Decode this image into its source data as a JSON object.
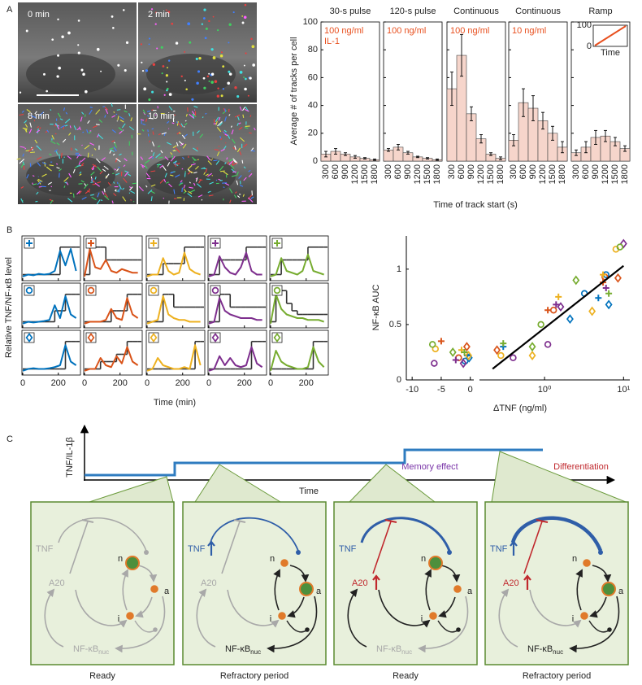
{
  "panel_labels": [
    "A",
    "B",
    "C"
  ],
  "microscopy": {
    "frames": [
      "0 min",
      "2 min",
      "8 min",
      "10 min"
    ]
  },
  "chart_data": [
    {
      "type": "bar",
      "ylabel": "Average # of tracks per cell",
      "xlabel": "Time of track start (s)",
      "ylim": [
        0,
        100
      ],
      "yticks": [
        0,
        20,
        40,
        60,
        80,
        100
      ],
      "xlim": [
        150,
        1950
      ],
      "xticks": [
        300,
        600,
        900,
        1200,
        1500,
        1800
      ],
      "x": [
        300,
        600,
        900,
        1200,
        1500,
        1800
      ],
      "color": "#f6d5cb",
      "annotation_color": "#e8501f",
      "panels": [
        {
          "title": "30-s pulse",
          "annotation": [
            "100 ng/ml",
            "IL-1"
          ],
          "values": [
            5,
            7,
            5,
            3,
            2,
            1
          ],
          "errors": [
            2,
            2,
            1,
            1,
            0.5,
            0.5
          ]
        },
        {
          "title": "120-s pulse",
          "annotation": [
            "100 ng/ml"
          ],
          "values": [
            8,
            10,
            6,
            3,
            2,
            1
          ],
          "errors": [
            1,
            2,
            1,
            0.5,
            0.5,
            0.5
          ]
        },
        {
          "title": "Continuous",
          "annotation": [
            "100 ng/ml"
          ],
          "values": [
            52,
            76,
            34,
            16,
            5,
            2
          ],
          "errors": [
            12,
            15,
            5,
            3,
            1,
            1
          ]
        },
        {
          "title": "Continuous",
          "annotation": [
            "10 ng/ml"
          ],
          "values": [
            15,
            42,
            38,
            29,
            20,
            10
          ],
          "errors": [
            4,
            10,
            9,
            6,
            5,
            4
          ]
        },
        {
          "title": "Ramp",
          "values": [
            6,
            10,
            17,
            18,
            14,
            9
          ],
          "errors": [
            2,
            4,
            5,
            4,
            3,
            2
          ],
          "inset": {
            "ylim": [
              0,
              100
            ],
            "yticks": [
              0,
              100
            ],
            "xlabel": "Time",
            "values": [
              0,
              100
            ],
            "color": "#e8501f"
          }
        }
      ]
    },
    {
      "type": "line",
      "ylabel": "Relative TNF/NF-κB level",
      "xlabel": "Time (min)",
      "xlim": [
        0,
        320
      ],
      "xticks": [
        0,
        200
      ],
      "ylim": [
        0,
        1
      ],
      "x": [
        0,
        30,
        60,
        90,
        120,
        150,
        180,
        210,
        240,
        270,
        300
      ],
      "colors": [
        "#0072bd",
        "#d95319",
        "#edb120",
        "#7e2f8e",
        "#77ac30"
      ],
      "markers": [
        "plus",
        "circle",
        "diamond"
      ],
      "panels": [
        [
          {
            "values": [
              0.05,
              0.1,
              0.08,
              0.12,
              0.1,
              0.12,
              0.2,
              0.75,
              0.35,
              0.8,
              0.2
            ],
            "input": [
              0.1,
              0.1,
              0.1,
              0.1,
              0.1,
              0.1,
              0.1,
              0.85,
              0.85,
              0.85,
              0.85
            ]
          },
          {
            "values": [
              0.05,
              0.8,
              0.3,
              0.25,
              0.5,
              0.2,
              0.15,
              0.25,
              0.2,
              0.15,
              0.15
            ],
            "input": [
              0.1,
              0.85,
              0.85,
              0.85,
              0.5,
              0.5,
              0.5,
              0.5,
              0.5,
              0.5,
              0.5
            ]
          },
          {
            "values": [
              0.05,
              0.1,
              0.1,
              0.55,
              0.2,
              0.1,
              0.15,
              0.7,
              0.25,
              0.15,
              0.1
            ],
            "input": [
              0.1,
              0.1,
              0.1,
              0.4,
              0.4,
              0.4,
              0.4,
              0.85,
              0.85,
              0.85,
              0.85
            ]
          },
          {
            "values": [
              0.05,
              0.1,
              0.6,
              0.3,
              0.15,
              0.1,
              0.3,
              0.7,
              0.2,
              0.1,
              0.1
            ],
            "input": [
              0.1,
              0.1,
              0.5,
              0.5,
              0.5,
              0.5,
              0.5,
              0.85,
              0.85,
              0.85,
              0.85
            ]
          },
          {
            "values": [
              0.05,
              0.1,
              0.55,
              0.2,
              0.15,
              0.1,
              0.2,
              0.65,
              0.2,
              0.15,
              0.1
            ],
            "input": [
              0.1,
              0.1,
              0.5,
              0.5,
              0.5,
              0.5,
              0.5,
              0.85,
              0.85,
              0.85,
              0.85
            ]
          }
        ],
        [
          {
            "values": [
              0.05,
              0.1,
              0.08,
              0.1,
              0.12,
              0.15,
              0.55,
              0.2,
              0.8,
              0.3,
              0.2
            ],
            "input": [
              0.1,
              0.1,
              0.1,
              0.1,
              0.1,
              0.1,
              0.4,
              0.4,
              0.85,
              0.85,
              0.85
            ]
          },
          {
            "values": [
              0.05,
              0.1,
              0.1,
              0.1,
              0.15,
              0.45,
              0.2,
              0.15,
              0.75,
              0.3,
              0.2
            ],
            "input": [
              0.1,
              0.1,
              0.1,
              0.1,
              0.1,
              0.4,
              0.4,
              0.4,
              0.85,
              0.85,
              0.85
            ]
          },
          {
            "values": [
              0.05,
              0.1,
              0.15,
              0.8,
              0.3,
              0.2,
              0.15,
              0.15,
              0.1,
              0.1,
              0.1
            ],
            "input": [
              0.1,
              0.1,
              0.1,
              0.85,
              0.85,
              0.5,
              0.5,
              0.5,
              0.5,
              0.5,
              0.5
            ]
          },
          {
            "values": [
              0.05,
              0.1,
              0.75,
              0.4,
              0.3,
              0.25,
              0.2,
              0.2,
              0.2,
              0.15,
              0.15
            ],
            "input": [
              0.1,
              0.1,
              0.85,
              0.85,
              0.5,
              0.5,
              0.5,
              0.5,
              0.5,
              0.5,
              0.5
            ]
          },
          {
            "values": [
              0.05,
              0.85,
              0.45,
              0.3,
              0.25,
              0.2,
              0.2,
              0.15,
              0.15,
              0.15,
              0.1
            ],
            "input": [
              0.1,
              0.95,
              0.95,
              0.6,
              0.4,
              0.3,
              0.3,
              0.3,
              0.3,
              0.3,
              0.3
            ]
          }
        ],
        [
          {
            "values": [
              0.05,
              0.1,
              0.12,
              0.1,
              0.1,
              0.12,
              0.15,
              0.2,
              0.75,
              0.3,
              0.2
            ],
            "input": [
              0.1,
              0.1,
              0.1,
              0.1,
              0.1,
              0.1,
              0.1,
              0.1,
              0.85,
              0.85,
              0.85
            ]
          },
          {
            "values": [
              0.05,
              0.1,
              0.1,
              0.4,
              0.2,
              0.15,
              0.45,
              0.25,
              0.7,
              0.3,
              0.2
            ],
            "input": [
              0.1,
              0.1,
              0.1,
              0.3,
              0.3,
              0.3,
              0.5,
              0.5,
              0.85,
              0.85,
              0.85
            ]
          },
          {
            "values": [
              0.05,
              0.1,
              0.4,
              0.2,
              0.15,
              0.1,
              0.1,
              0.15,
              0.1,
              0.75,
              0.2
            ],
            "input": [
              0.1,
              0.1,
              0.1,
              0.1,
              0.1,
              0.1,
              0.1,
              0.1,
              0.1,
              0.85,
              0.85
            ]
          },
          {
            "values": [
              0.05,
              0.1,
              0.45,
              0.2,
              0.4,
              0.2,
              0.15,
              0.2,
              0.7,
              0.25,
              0.15
            ],
            "input": [
              0.1,
              0.1,
              0.1,
              0.1,
              0.1,
              0.1,
              0.1,
              0.1,
              0.85,
              0.85,
              0.85
            ]
          },
          {
            "values": [
              0.05,
              0.6,
              0.3,
              0.2,
              0.15,
              0.1,
              0.1,
              0.15,
              0.7,
              0.3,
              0.15
            ],
            "input": [
              0.1,
              0.1,
              0.1,
              0.1,
              0.1,
              0.1,
              0.1,
              0.1,
              0.85,
              0.85,
              0.85
            ]
          }
        ]
      ]
    },
    {
      "type": "scatter",
      "ylabel": "NF-κB AUC",
      "xlabel": "ΔTNF (ng/ml)",
      "ylim": [
        0,
        1.3
      ],
      "yticks": [
        0,
        0.5,
        1
      ],
      "panels": [
        {
          "xlim": [
            -11,
            0.6
          ],
          "xticks": [
            -10,
            -5,
            0
          ]
        },
        {
          "xlim": [
            0.15,
            12
          ],
          "log": true,
          "xticks": [
            {
              "value": 1,
              "label": "10⁰"
            },
            {
              "value": 10,
              "label": "10¹"
            }
          ]
        }
      ],
      "series": [
        {
          "color": "#0072bd",
          "marker": "plus",
          "x": [
            -0.5,
            0.3,
            4.8
          ],
          "values": [
            0.22,
            0.3,
            0.74
          ]
        },
        {
          "color": "#0072bd",
          "marker": "circle",
          "x": [
            -0.9,
            3.2,
            6
          ],
          "values": [
            0.17,
            0.78,
            0.95
          ]
        },
        {
          "color": "#0072bd",
          "marker": "diamond",
          "x": [
            -0.2,
            2.1,
            6.5
          ],
          "values": [
            0.2,
            0.55,
            0.68
          ]
        },
        {
          "color": "#d95319",
          "marker": "plus",
          "x": [
            -5,
            1.1,
            5.5
          ],
          "values": [
            0.35,
            0.63,
            0.88
          ]
        },
        {
          "color": "#d95319",
          "marker": "circle",
          "x": [
            -2,
            1.3,
            5.8
          ],
          "values": [
            0.2,
            0.63,
            0.93
          ]
        },
        {
          "color": "#d95319",
          "marker": "diamond",
          "x": [
            -0.6,
            0.25,
            8.5
          ],
          "values": [
            0.3,
            0.27,
            0.92
          ]
        },
        {
          "color": "#edb120",
          "marker": "plus",
          "x": [
            -1.5,
            1.5,
            5.5
          ],
          "values": [
            0.27,
            0.75,
            0.95
          ]
        },
        {
          "color": "#edb120",
          "marker": "circle",
          "x": [
            -6,
            0.28,
            8
          ],
          "values": [
            0.28,
            0.22,
            1.18
          ]
        },
        {
          "color": "#edb120",
          "marker": "diamond",
          "x": [
            -0.3,
            0.7,
            4
          ],
          "values": [
            0.22,
            0.22,
            0.62
          ]
        },
        {
          "color": "#7e2f8e",
          "marker": "plus",
          "x": [
            -2.5,
            1.4,
            6
          ],
          "values": [
            0.18,
            0.68,
            0.83
          ]
        },
        {
          "color": "#7e2f8e",
          "marker": "circle",
          "x": [
            -6.2,
            0.4,
            1.1
          ],
          "values": [
            0.15,
            0.2,
            0.32
          ]
        },
        {
          "color": "#7e2f8e",
          "marker": "diamond",
          "x": [
            -1.2,
            1.6,
            10
          ],
          "values": [
            0.15,
            0.66,
            1.23
          ]
        },
        {
          "color": "#77ac30",
          "marker": "plus",
          "x": [
            -1,
            0.3,
            6.5
          ],
          "values": [
            0.25,
            0.33,
            0.78
          ]
        },
        {
          "color": "#77ac30",
          "marker": "circle",
          "x": [
            -6.5,
            0.9,
            9
          ],
          "values": [
            0.32,
            0.5,
            1.2
          ]
        },
        {
          "color": "#77ac30",
          "marker": "diamond",
          "x": [
            -3,
            0.7,
            2.5
          ],
          "values": [
            0.25,
            0.3,
            0.9
          ]
        }
      ],
      "fit": {
        "x": [
          0.22,
          10
        ],
        "values": [
          0.1,
          1.03
        ]
      }
    }
  ],
  "diagram": {
    "y_axis_label": "TNF/IL-1β",
    "x_axis_label": "Time",
    "states": [
      {
        "tnf": "TNF",
        "a20": "A20",
        "n": "n",
        "a": "a",
        "i": "i",
        "nfkb": "NF-κB",
        "nfkb_sub": "nuc",
        "caption": "Ready"
      },
      {
        "tnf": "TNF",
        "a20": "A20",
        "n": "n",
        "a": "a",
        "i": "i",
        "nfkb": "NF-κB",
        "nfkb_sub": "nuc",
        "caption": "Refractory period"
      },
      {
        "header": "Memory effect",
        "tnf": "TNF",
        "a20": "A20",
        "n": "n",
        "a": "a",
        "i": "i",
        "nfkb": "NF-κB",
        "nfkb_sub": "nuc",
        "caption": "Ready"
      },
      {
        "header": "Differentiation",
        "tnf": "TNF",
        "a20": "A20",
        "n": "n",
        "a": "a",
        "i": "i",
        "nfkb": "NF-κB",
        "nfkb_sub": "nuc",
        "caption": "Refractory period"
      }
    ]
  }
}
